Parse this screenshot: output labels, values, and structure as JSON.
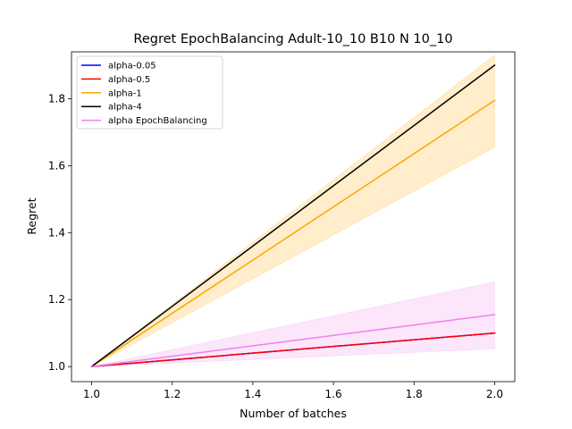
{
  "chart_data": {
    "type": "line",
    "title": "Regret EpochBalancing Adult-10_10 B10 N 10_10",
    "xlabel": "Number of batches",
    "ylabel": "Regret",
    "xlim": [
      0.95,
      2.05
    ],
    "ylim": [
      0.955,
      1.94
    ],
    "xticks": [
      1.0,
      1.2,
      1.4,
      1.6,
      1.8,
      2.0
    ],
    "xtick_labels": [
      "1.0",
      "1.2",
      "1.4",
      "1.6",
      "1.8",
      "2.0"
    ],
    "yticks": [
      1.0,
      1.2,
      1.4,
      1.6,
      1.8
    ],
    "ytick_labels": [
      "1.0",
      "1.2",
      "1.4",
      "1.6",
      "1.8"
    ],
    "grid": false,
    "legend_position": "top-left",
    "series": [
      {
        "name": "alpha-0.05",
        "color": "#0000ff",
        "x": [
          1.0,
          2.0
        ],
        "y": [
          1.0,
          1.1
        ],
        "band": null
      },
      {
        "name": "alpha-0.5",
        "color": "#ff0000",
        "x": [
          1.0,
          2.0
        ],
        "y": [
          1.0,
          1.1
        ],
        "band": null
      },
      {
        "name": "alpha-1",
        "color": "#ffa500",
        "x": [
          1.0,
          2.0
        ],
        "y": [
          1.0,
          1.795
        ],
        "band": {
          "lower": [
            1.0,
            1.655
          ],
          "upper": [
            1.0,
            1.93
          ],
          "opacity": 0.2
        }
      },
      {
        "name": "alpha-4",
        "color": "#000000",
        "x": [
          1.0,
          2.0
        ],
        "y": [
          1.0,
          1.9
        ],
        "band": null
      },
      {
        "name": "alpha EpochBalancing",
        "color": "#ee82ee",
        "x": [
          1.0,
          2.0
        ],
        "y": [
          1.0,
          1.155
        ],
        "band": {
          "lower": [
            1.0,
            1.053
          ],
          "upper": [
            1.0,
            1.253
          ],
          "opacity": 0.2
        }
      }
    ]
  }
}
